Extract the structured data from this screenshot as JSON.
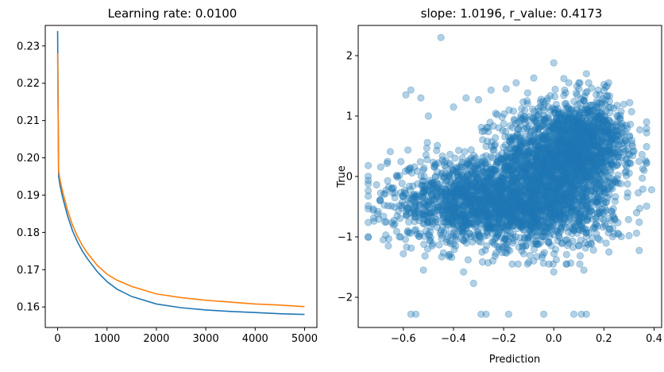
{
  "chart_data": [
    {
      "type": "line",
      "title": "Learning rate: 0.0100",
      "xlabel": "",
      "ylabel": "",
      "xlim": [
        -250,
        5250
      ],
      "ylim": [
        0.1545,
        0.2355
      ],
      "xticks": [
        0,
        1000,
        2000,
        3000,
        4000,
        5000
      ],
      "xtick_labels": [
        "0",
        "1000",
        "2000",
        "3000",
        "4000",
        "5000"
      ],
      "yticks": [
        0.16,
        0.17,
        0.18,
        0.19,
        0.2,
        0.21,
        0.22,
        0.23
      ],
      "ytick_labels": [
        "0.16",
        "0.17",
        "0.18",
        "0.19",
        "0.20",
        "0.21",
        "0.22",
        "0.23"
      ],
      "grid": false,
      "series": [
        {
          "color": "#1f77b4",
          "x": [
            0,
            20,
            50,
            100,
            200,
            300,
            400,
            500,
            600,
            800,
            1000,
            1200,
            1500,
            2000,
            2500,
            3000,
            3500,
            4000,
            4500,
            5000
          ],
          "y": [
            0.234,
            0.195,
            0.1925,
            0.1895,
            0.1845,
            0.1805,
            0.1775,
            0.175,
            0.173,
            0.1695,
            0.1668,
            0.1648,
            0.1628,
            0.1608,
            0.1598,
            0.1592,
            0.1588,
            0.1585,
            0.1582,
            0.158
          ]
        },
        {
          "color": "#ff7f0e",
          "x": [
            0,
            20,
            50,
            100,
            200,
            300,
            400,
            500,
            600,
            800,
            1000,
            1200,
            1500,
            2000,
            2500,
            3000,
            3500,
            4000,
            4500,
            5000
          ],
          "y": [
            0.228,
            0.1965,
            0.194,
            0.191,
            0.186,
            0.182,
            0.179,
            0.1765,
            0.1745,
            0.1712,
            0.1688,
            0.1672,
            0.1655,
            0.1635,
            0.1625,
            0.1618,
            0.1613,
            0.1608,
            0.1605,
            0.1601
          ]
        }
      ]
    },
    {
      "type": "scatter",
      "title": "slope: 1.0196, r_value: 0.4173",
      "xlabel": "Prediction",
      "ylabel": "True",
      "xlim": [
        -0.78,
        0.43
      ],
      "ylim": [
        -2.5,
        2.5
      ],
      "xticks": [
        -0.6,
        -0.4,
        -0.2,
        0.0,
        0.2,
        0.4
      ],
      "xtick_labels": [
        "−0.6",
        "−0.4",
        "−0.2",
        "0.0",
        "0.2",
        "0.4"
      ],
      "yticks": [
        -2,
        -1,
        0,
        1,
        2
      ],
      "ytick_labels": [
        "−2",
        "−1",
        "0",
        "1",
        "2"
      ],
      "grid": false,
      "color": "#1f77b4",
      "alpha": 0.35,
      "points": [
        [
          -0.45,
          2.3
        ],
        [
          0.0,
          1.88
        ],
        [
          -0.57,
          1.43
        ],
        [
          -0.59,
          1.35
        ],
        [
          -0.53,
          1.3
        ],
        [
          -0.25,
          1.43
        ],
        [
          -0.08,
          1.63
        ],
        [
          0.04,
          1.62
        ],
        [
          0.13,
          1.7
        ],
        [
          0.06,
          1.55
        ],
        [
          -0.19,
          1.45
        ],
        [
          0.2,
          1.52
        ],
        [
          -0.3,
          1.27
        ],
        [
          -0.4,
          1.15
        ],
        [
          -0.5,
          1.0
        ],
        [
          -0.35,
          1.3
        ],
        [
          -0.15,
          1.55
        ],
        [
          0.34,
          0.25
        ],
        [
          0.36,
          0.1
        ],
        [
          0.39,
          -0.22
        ],
        [
          0.33,
          -0.6
        ],
        [
          0.3,
          -0.98
        ],
        [
          0.28,
          0.55
        ],
        [
          -0.7,
          -0.58
        ],
        [
          -0.72,
          -0.56
        ],
        [
          -0.68,
          -1.05
        ],
        [
          -0.66,
          -1.15
        ],
        [
          -0.6,
          -1.28
        ],
        [
          -0.52,
          -1.55
        ],
        [
          -0.36,
          -1.58
        ],
        [
          -0.32,
          -1.77
        ],
        [
          -0.12,
          -1.28
        ],
        [
          0.0,
          -1.58
        ],
        [
          0.12,
          -1.55
        ],
        [
          0.22,
          -1.25
        ],
        [
          -0.57,
          -2.28
        ],
        [
          -0.55,
          -2.28
        ],
        [
          -0.29,
          -2.28
        ],
        [
          -0.27,
          -2.28
        ],
        [
          -0.18,
          -2.28
        ],
        [
          -0.04,
          -2.28
        ],
        [
          0.08,
          -2.28
        ],
        [
          0.11,
          -2.28
        ],
        [
          0.13,
          -2.28
        ],
        [
          -0.1,
          -1.42
        ],
        [
          0.05,
          -1.45
        ]
      ],
      "clusters": [
        {
          "cx": 0.02,
          "cy": 0.3,
          "sx": 0.12,
          "sy": 0.45,
          "n": 1600
        },
        {
          "cx": -0.3,
          "cy": -0.4,
          "sx": 0.18,
          "sy": 0.35,
          "n": 1500
        },
        {
          "cx": -0.05,
          "cy": -0.6,
          "sx": 0.15,
          "sy": 0.3,
          "n": 700
        },
        {
          "cx": 0.15,
          "cy": 0.6,
          "sx": 0.08,
          "sy": 0.35,
          "n": 500
        }
      ]
    }
  ]
}
